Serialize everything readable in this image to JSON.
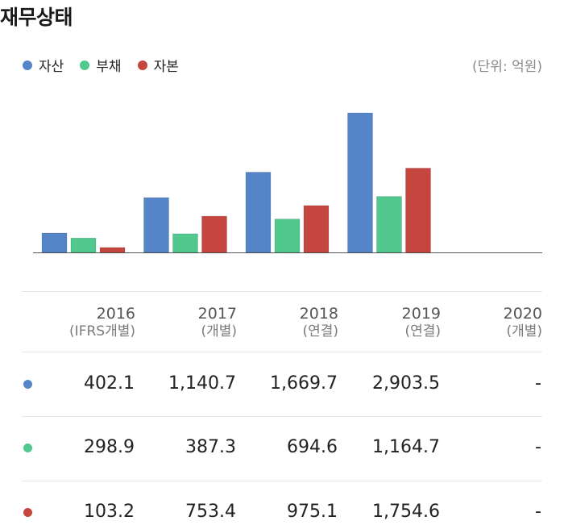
{
  "title": "재무상태",
  "unit": "(단위: 억원)",
  "legend": [
    {
      "label": "자산",
      "color": "#5585c9"
    },
    {
      "label": "부채",
      "color": "#50c88e"
    },
    {
      "label": "자본",
      "color": "#c5463f"
    }
  ],
  "table": {
    "columns": [
      {
        "year": "2016",
        "sub": "(IFRS개별)"
      },
      {
        "year": "2017",
        "sub": "(개별)"
      },
      {
        "year": "2018",
        "sub": "(연결)"
      },
      {
        "year": "2019",
        "sub": "(연결)"
      },
      {
        "year": "2020",
        "sub": "(개별)"
      }
    ],
    "rows": [
      {
        "series": "자산",
        "values": [
          "402.1",
          "1,140.7",
          "1,669.7",
          "2,903.5",
          "-"
        ]
      },
      {
        "series": "부채",
        "values": [
          "298.9",
          "387.3",
          "694.6",
          "1,164.7",
          "-"
        ]
      },
      {
        "series": "자본",
        "values": [
          "103.2",
          "753.4",
          "975.1",
          "1,754.6",
          "-"
        ]
      }
    ]
  },
  "chart_data": {
    "type": "bar",
    "title": "재무상태",
    "categories": [
      "2016",
      "2017",
      "2018",
      "2019",
      "2020"
    ],
    "series": [
      {
        "name": "자산",
        "color": "#5585c9",
        "values": [
          402.1,
          1140.7,
          1669.7,
          2903.5,
          null
        ]
      },
      {
        "name": "부채",
        "color": "#50c88e",
        "values": [
          298.9,
          387.3,
          694.6,
          1164.7,
          null
        ]
      },
      {
        "name": "자본",
        "color": "#c5463f",
        "values": [
          103.2,
          753.4,
          975.1,
          1754.6,
          null
        ]
      }
    ],
    "unit": "억원",
    "grid": false,
    "legend_position": "top-left"
  }
}
